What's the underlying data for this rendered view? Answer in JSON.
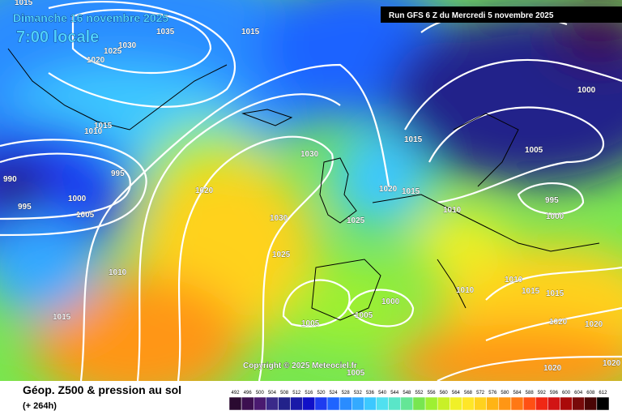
{
  "header": {
    "date": "Dimanche 16 novembre 2025",
    "time": "7:00 locale",
    "run": "Run GFS 6 Z du Mercredi 5 novembre 2025",
    "copyright": "Copyright © 2025 Meteociel.fr"
  },
  "footer": {
    "title": "Géop. Z500 & pression au sol",
    "lead": "(+ 264h)"
  },
  "legend": {
    "labels": [
      492,
      496,
      500,
      504,
      508,
      512,
      516,
      520,
      524,
      528,
      532,
      536,
      540,
      544,
      548,
      552,
      556,
      560,
      564,
      568,
      572,
      576,
      580,
      584,
      588,
      592,
      596,
      600,
      604,
      608,
      612
    ],
    "colors": [
      "#2a0a30",
      "#3c1050",
      "#4a1a70",
      "#3a2a8a",
      "#22228a",
      "#1a1aa8",
      "#1010c8",
      "#1e3cf0",
      "#1e64ff",
      "#2a8cff",
      "#34aaff",
      "#3cc8ff",
      "#50e0f0",
      "#5ae6c8",
      "#64e696",
      "#78e650",
      "#9ef032",
      "#c8f028",
      "#f0f028",
      "#ffe628",
      "#ffd21e",
      "#ffb414",
      "#ff9614",
      "#ff7814",
      "#ff5014",
      "#f02814",
      "#d21414",
      "#aa0a0a",
      "#780a0a",
      "#4a0505",
      "#000000"
    ]
  },
  "isobars": [
    "1015",
    "1035",
    "1030",
    "1025",
    "1020",
    "1015",
    "1015",
    "1010",
    "990",
    "995",
    "995",
    "1000",
    "1005",
    "1020",
    "1030",
    "1030",
    "1025",
    "1025",
    "1020",
    "1015",
    "1015",
    "1010",
    "1005",
    "995",
    "1000",
    "1000",
    "1010",
    "1015",
    "1005",
    "1005",
    "1000",
    "1010",
    "1010",
    "1015",
    "1015",
    "1020",
    "1020",
    "1020",
    "1005",
    "1020"
  ]
}
